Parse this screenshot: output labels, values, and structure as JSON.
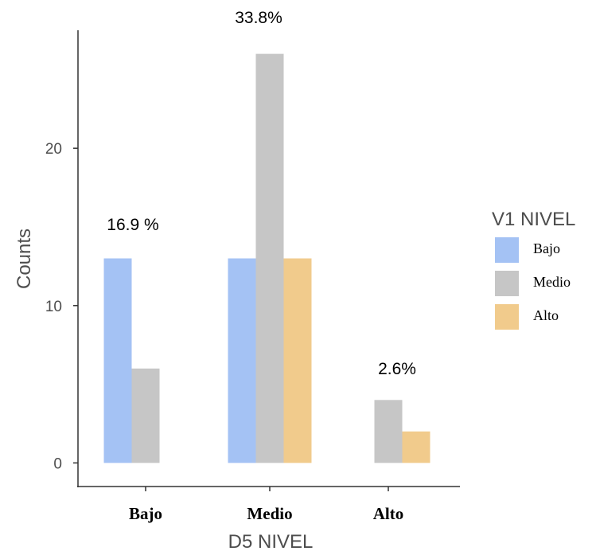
{
  "chart_data": {
    "type": "bar",
    "xlabel": "D5 NIVEL",
    "ylabel": "Counts",
    "categories": [
      "Bajo",
      "Medio",
      "Alto"
    ],
    "series": [
      {
        "name": "Bajo",
        "color": "#a4c2f4",
        "values": [
          13,
          13,
          0
        ]
      },
      {
        "name": "Medio",
        "color": "#c6c6c6",
        "values": [
          6,
          26,
          4
        ]
      },
      {
        "name": "Alto",
        "color": "#f1cb8c",
        "values": [
          0,
          13,
          2
        ]
      }
    ],
    "ylim": [
      -1.5,
      27.5
    ],
    "yticks": [
      0,
      10,
      20
    ],
    "legend_title": "V1 NIVEL",
    "legend_position": "right",
    "grid": false,
    "annotations": [
      "16.9 %",
      "33.8%",
      "2.6%"
    ]
  }
}
